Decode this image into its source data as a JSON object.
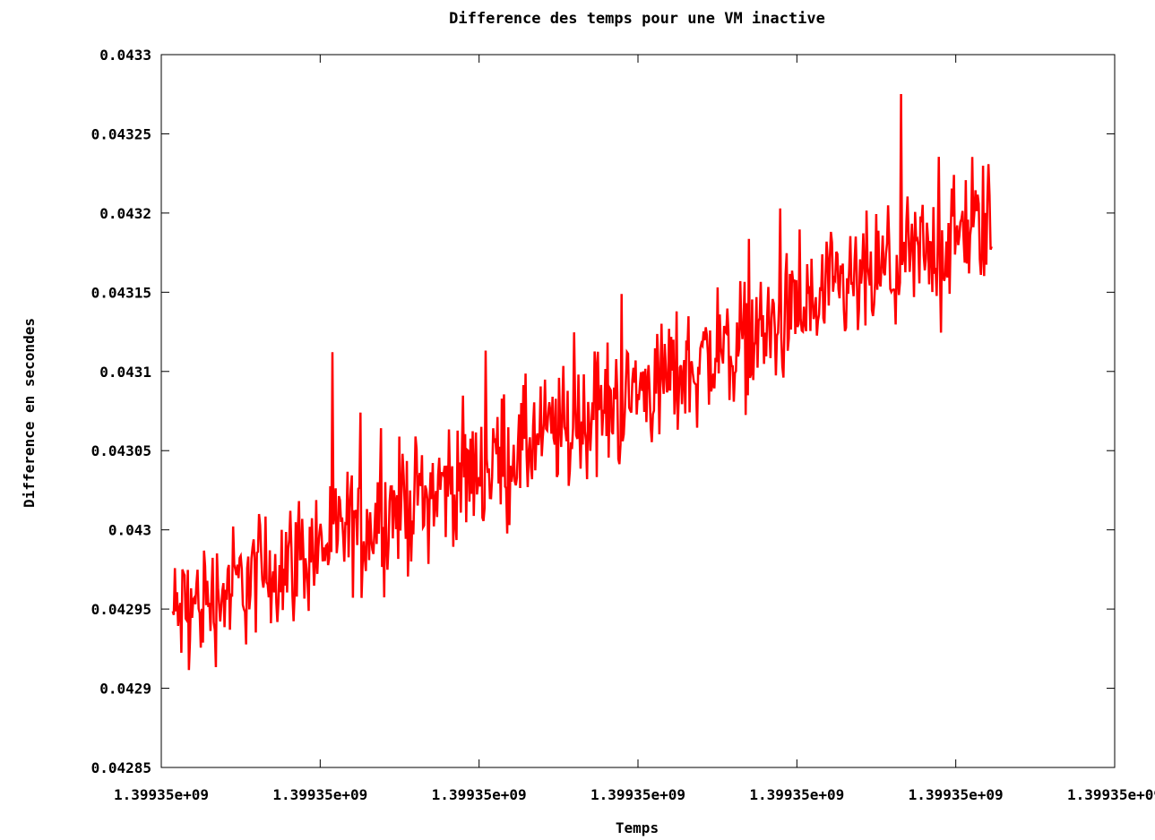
{
  "chart_data": {
    "type": "line",
    "title": "Difference des temps pour une VM inactive",
    "xlabel": "Temps",
    "ylabel": "Difference en secondes",
    "x_tick_labels": [
      "1.39935e+09",
      "1.39935e+09",
      "1.39935e+09",
      "1.39935e+09",
      "1.39935e+09",
      "1.39935e+09",
      "1.39935e+09"
    ],
    "y_tick_labels": [
      "0.04285",
      "0.0429",
      "0.04295",
      "0.043",
      "0.04305",
      "0.0431",
      "0.04315",
      "0.0432",
      "0.04325",
      "0.0433"
    ],
    "ylim": [
      0.04285,
      0.0433
    ],
    "x_range_fraction": [
      0.012,
      0.871
    ],
    "grid": false,
    "legend": "none",
    "series": [
      {
        "color": "#ff0000",
        "trend_start": 0.042945,
        "trend_end": 0.043195,
        "noise_amplitude": 3e-05,
        "num_points": 760
      }
    ]
  }
}
